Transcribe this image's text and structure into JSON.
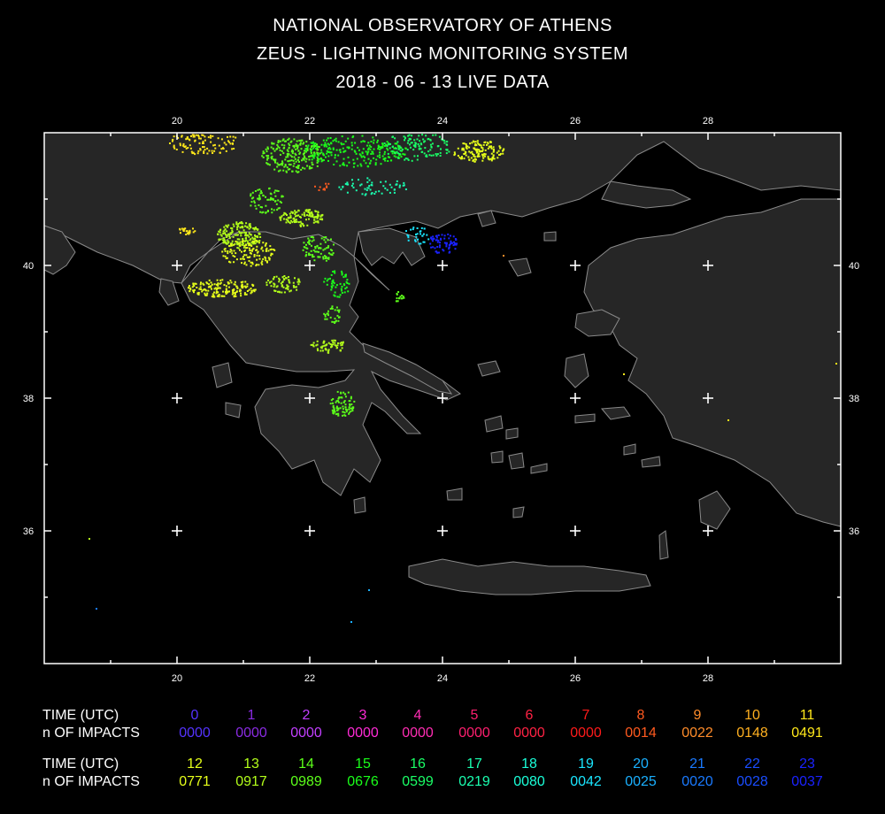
{
  "header": {
    "line1": "NATIONAL OBSERVATORY OF ATHENS",
    "line2": "ZEUS - LIGHTNING MONITORING SYSTEM",
    "line3": "2018 - 06 - 13 LIVE DATA"
  },
  "map": {
    "lon_ticks": [
      "20",
      "22",
      "24",
      "26",
      "28"
    ],
    "lat_ticks": [
      "40",
      "38",
      "36"
    ],
    "colors": {
      "background": "#000000",
      "land": "#262626",
      "coast": "#8a8a8a",
      "frame": "#ffffff",
      "grid_cross": "#ffffff"
    }
  },
  "legend": {
    "time_label": "TIME (UTC)",
    "impacts_label": "n OF IMPACTS",
    "rows": [
      [
        {
          "hour": "0",
          "count": "0000",
          "color": "#5533ff"
        },
        {
          "hour": "1",
          "count": "0000",
          "color": "#8a2be2"
        },
        {
          "hour": "2",
          "count": "0000",
          "color": "#c23fff"
        },
        {
          "hour": "3",
          "count": "0000",
          "color": "#ff2bd6"
        },
        {
          "hour": "4",
          "count": "0000",
          "color": "#ff2db3"
        },
        {
          "hour": "5",
          "count": "0000",
          "color": "#ff1f6f"
        },
        {
          "hour": "6",
          "count": "0000",
          "color": "#ff2244"
        },
        {
          "hour": "7",
          "count": "0000",
          "color": "#ff1a1a"
        },
        {
          "hour": "8",
          "count": "0014",
          "color": "#ff5a1f"
        },
        {
          "hour": "9",
          "count": "0022",
          "color": "#ff8c2a"
        },
        {
          "hour": "10",
          "count": "0148",
          "color": "#ffb020"
        },
        {
          "hour": "11",
          "count": "0491",
          "color": "#ffe81a"
        }
      ],
      [
        {
          "hour": "12",
          "count": "0771",
          "color": "#e6ff1a"
        },
        {
          "hour": "13",
          "count": "0917",
          "color": "#b3ff1a"
        },
        {
          "hour": "14",
          "count": "0989",
          "color": "#5cff1a"
        },
        {
          "hour": "15",
          "count": "0676",
          "color": "#1aff1a"
        },
        {
          "hour": "16",
          "count": "0599",
          "color": "#1aff66"
        },
        {
          "hour": "17",
          "count": "0219",
          "color": "#1affb0"
        },
        {
          "hour": "18",
          "count": "0080",
          "color": "#1affd9"
        },
        {
          "hour": "19",
          "count": "0042",
          "color": "#1ae6ff"
        },
        {
          "hour": "20",
          "count": "0025",
          "color": "#1ab0ff"
        },
        {
          "hour": "21",
          "count": "0020",
          "color": "#1a7aff"
        },
        {
          "hour": "22",
          "count": "0028",
          "color": "#1a4dff"
        },
        {
          "hour": "23",
          "count": "0037",
          "color": "#1a22ff"
        }
      ]
    ]
  }
}
